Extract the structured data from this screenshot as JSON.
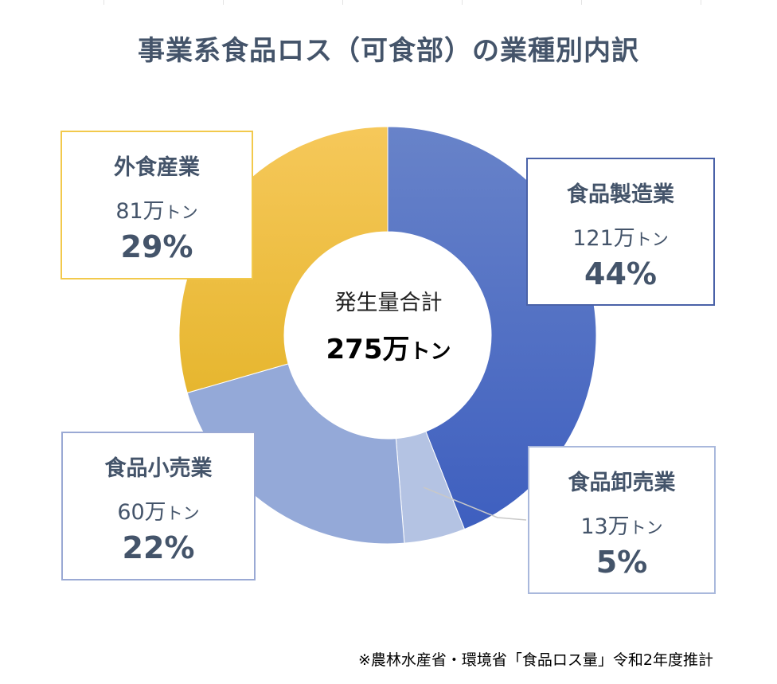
{
  "title": "事業系食品ロス（可食部）の業種別内訳",
  "center": {
    "label": "発生量合計",
    "total": "275万",
    "unit": "トン"
  },
  "source": "※農林水産省・環境省「食品ロス量」令和2年度推計",
  "chart_data": {
    "type": "pie",
    "title": "事業系食品ロス（可食部）の業種別内訳",
    "total": 275,
    "unit": "万トン",
    "categories": [
      "食品製造業",
      "食品卸売業",
      "食品小売業",
      "外食産業"
    ],
    "values": [
      121,
      13,
      60,
      81
    ],
    "percentages": [
      "44%",
      "5%",
      "22%",
      "29%"
    ],
    "amount_labels": [
      "121万",
      "13万",
      "60万",
      "81万"
    ],
    "colors": [
      "#4a6cc4",
      "#b4c3e3",
      "#94a9d8",
      "#f0c342"
    ],
    "border_colors": [
      "#4a62a8",
      "#a9b8dc",
      "#9aa9d4",
      "#f2c94c"
    ]
  }
}
